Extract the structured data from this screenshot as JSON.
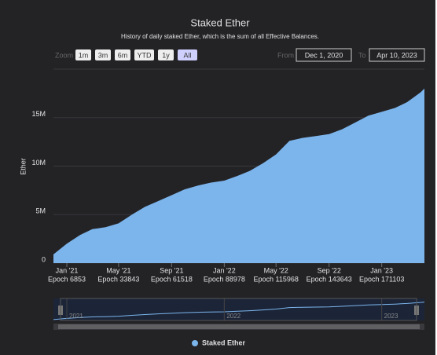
{
  "chart_data": {
    "type": "area",
    "title": "Staked Ether",
    "subtitle": "History of daily staked Ether, which is the sum of all Effective Balances.",
    "range_selector": {
      "zoom_label": "Zoom",
      "buttons": [
        "1m",
        "3m",
        "6m",
        "YTD",
        "1y",
        "All"
      ],
      "selected": 5,
      "from_label": "From",
      "from": "Dec 1, 2020",
      "to_label": "To",
      "to": "Apr 10, 2023"
    },
    "y_label": "Ether",
    "x": [
      "2020-12-01",
      "2021-01-01",
      "2021-02-01",
      "2021-03-01",
      "2021-04-01",
      "2021-05-01",
      "2021-06-01",
      "2021-07-01",
      "2021-08-01",
      "2021-09-01",
      "2021-10-01",
      "2021-11-01",
      "2021-12-01",
      "2022-01-01",
      "2022-02-01",
      "2022-03-01",
      "2022-04-01",
      "2022-05-01",
      "2022-06-01",
      "2022-07-01",
      "2022-08-01",
      "2022-09-01",
      "2022-10-01",
      "2022-11-01",
      "2022-12-01",
      "2023-01-01",
      "2023-02-01",
      "2023-03-01",
      "2023-04-01",
      "2023-04-10"
    ],
    "series": [
      {
        "name": "Staked Ether",
        "color": "#7cb5ec",
        "values": [
          900000,
          2000000,
          2900000,
          3500000,
          3700000,
          4100000,
          5000000,
          5800000,
          6400000,
          7000000,
          7600000,
          8000000,
          8300000,
          8500000,
          9000000,
          9500000,
          10300000,
          11200000,
          12600000,
          12900000,
          13100000,
          13300000,
          13800000,
          14500000,
          15200000,
          15600000,
          16000000,
          16600000,
          17600000,
          18000000
        ]
      }
    ],
    "ylim": [
      0,
      20000000
    ],
    "yticks": [
      0,
      {
        "value": 5000000,
        "label": "5M"
      },
      {
        "value": 10000000,
        "label": "10M"
      },
      {
        "value": 15000000,
        "label": "15M"
      }
    ],
    "xticks": [
      {
        "value": "2021-01-01",
        "label": "Jan '21",
        "epoch": "Epoch 6853"
      },
      {
        "value": "2021-05-01",
        "label": "May '21",
        "epoch": "Epoch 33843"
      },
      {
        "value": "2021-09-01",
        "label": "Sep '21",
        "epoch": "Epoch 61518"
      },
      {
        "value": "2022-01-01",
        "label": "Jan '22",
        "epoch": "Epoch 88978"
      },
      {
        "value": "2022-05-01",
        "label": "May '22",
        "epoch": "Epoch 115968"
      },
      {
        "value": "2022-09-01",
        "label": "Sep '22",
        "epoch": "Epoch 143643"
      },
      {
        "value": "2023-01-01",
        "label": "Jan '23",
        "epoch": "Epoch 171103"
      }
    ],
    "navigator_ticks": [
      {
        "value": "2021-01-01",
        "label": "2021"
      },
      {
        "value": "2022-01-01",
        "label": "2022"
      },
      {
        "value": "2023-01-01",
        "label": "2023"
      }
    ],
    "grid": true
  }
}
